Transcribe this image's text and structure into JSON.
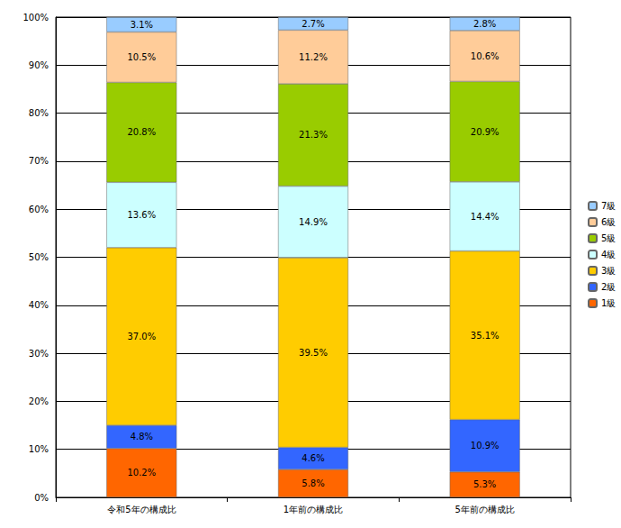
{
  "chart_data": {
    "type": "bar",
    "stacked": true,
    "data_labels": true,
    "grid": true,
    "legend": "right",
    "categories": [
      "令和5年の構成比",
      "1年前の構成比",
      "5年前の構成比"
    ],
    "ylim": [
      0,
      100
    ],
    "yticks": [
      {
        "value": 0,
        "label": "0%"
      },
      {
        "value": 10,
        "label": "10%"
      },
      {
        "value": 20,
        "label": "20%"
      },
      {
        "value": 30,
        "label": "30%"
      },
      {
        "value": 40,
        "label": "40%"
      },
      {
        "value": 50,
        "label": "50%"
      },
      {
        "value": 60,
        "label": "60%"
      },
      {
        "value": 70,
        "label": "70%"
      },
      {
        "value": 80,
        "label": "80%"
      },
      {
        "value": 90,
        "label": "90%"
      },
      {
        "value": 100,
        "label": "100%"
      }
    ],
    "series": [
      {
        "name": "1級",
        "color": "#ff6600",
        "values": [
          10.2,
          5.8,
          5.3
        ],
        "value_labels": [
          "10.2%",
          "5.8%",
          "5.3%"
        ]
      },
      {
        "name": "2級",
        "color": "#3366ff",
        "values": [
          4.8,
          4.6,
          10.9
        ],
        "value_labels": [
          "4.8%",
          "4.6%",
          "10.9%"
        ]
      },
      {
        "name": "3級",
        "color": "#ffcc00",
        "values": [
          37.0,
          39.5,
          35.1
        ],
        "value_labels": [
          "37.0%",
          "39.5%",
          "35.1%"
        ]
      },
      {
        "name": "4級",
        "color": "#ccffff",
        "values": [
          13.6,
          14.9,
          14.4
        ],
        "value_labels": [
          "13.6%",
          "14.9%",
          "14.4%"
        ]
      },
      {
        "name": "5級",
        "color": "#99cc00",
        "values": [
          20.8,
          21.3,
          20.9
        ],
        "value_labels": [
          "20.8%",
          "21.3%",
          "20.9%"
        ]
      },
      {
        "name": "6級",
        "color": "#ffcc99",
        "values": [
          10.5,
          11.2,
          10.6
        ],
        "value_labels": [
          "10.5%",
          "11.2%",
          "10.6%"
        ]
      },
      {
        "name": "7級",
        "color": "#99ccff",
        "values": [
          3.1,
          2.7,
          2.8
        ],
        "value_labels": [
          "3.1%",
          "2.7%",
          "2.8%"
        ]
      }
    ]
  }
}
